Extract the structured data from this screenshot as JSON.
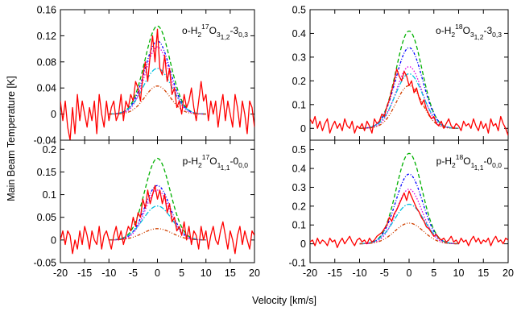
{
  "chart_data": [
    {
      "type": "line",
      "label_parts": [
        {
          "t": "o-H",
          "s": "n"
        },
        {
          "t": "2",
          "s": "sub"
        },
        {
          "t": "17",
          "s": "sup"
        },
        {
          "t": "O",
          "s": "n"
        },
        {
          "t": "3",
          "s": "sub"
        },
        {
          "t": "1,2",
          "s": "sub2"
        },
        {
          "t": "-3",
          "s": "n"
        },
        {
          "t": "0,3",
          "s": "sub"
        }
      ],
      "xlim": [
        -20,
        20
      ],
      "ylim": [
        -0.04,
        0.16
      ],
      "yticks": [
        -0.04,
        0,
        0.04,
        0.08,
        0.12,
        0.16
      ],
      "ytick_labels": [
        "-0.04",
        "0",
        "0.04",
        "0.08",
        "0.12",
        "0.16"
      ],
      "model_range": [
        -10,
        10
      ],
      "models": [
        {
          "color": "#00b000",
          "dash": "5,3",
          "peak": 0.135,
          "sigma": 2.6
        },
        {
          "color": "#0000ff",
          "dash": "3,2,1,2",
          "peak": 0.112,
          "sigma": 2.6
        },
        {
          "color": "#e000e0",
          "dash": "1.5,2",
          "peak": 0.103,
          "sigma": 2.5
        },
        {
          "color": "#00c0e0",
          "dash": "6,2,1.5,2",
          "peak": 0.07,
          "sigma": 2.9
        },
        {
          "color": "#d04000",
          "dash": "4,2,1,2,1,2",
          "peak": 0.043,
          "sigma": 2.6
        }
      ],
      "obs_x": [
        -20,
        -19.5,
        -19,
        -18.5,
        -18,
        -17.5,
        -17,
        -16.5,
        -16,
        -15.5,
        -15,
        -14.5,
        -14,
        -13.5,
        -13,
        -12.5,
        -12,
        -11.5,
        -11,
        -10.5,
        -10,
        -9.5,
        -9,
        -8.5,
        -8,
        -7.5,
        -7,
        -6.5,
        -6,
        -5.5,
        -5,
        -4.5,
        -4,
        -3.5,
        -3,
        -2.5,
        -2,
        -1.5,
        -1,
        -0.5,
        0,
        0.5,
        1,
        1.5,
        2,
        2.5,
        3,
        3.5,
        4,
        4.5,
        5,
        5.5,
        6,
        6.5,
        7,
        7.5,
        8,
        8.5,
        9,
        9.5,
        10,
        10.5,
        11,
        11.5,
        12,
        12.5,
        13,
        13.5,
        14,
        14.5,
        15,
        15.5,
        16,
        16.5,
        17,
        17.5,
        18,
        18.5,
        19,
        19.5,
        20
      ],
      "obs_y": [
        0.02,
        -0.01,
        0.02,
        -0.02,
        -0.04,
        0.01,
        -0.03,
        0.03,
        -0.01,
        0.02,
        0.0,
        -0.02,
        0.01,
        -0.01,
        0.02,
        -0.03,
        0.03,
        0.0,
        -0.02,
        0.02,
        -0.01,
        0.01,
        0.02,
        -0.01,
        0.0,
        0.03,
        -0.01,
        0.02,
        0.01,
        0.03,
        0.02,
        0.05,
        0.04,
        0.02,
        0.06,
        0.08,
        0.05,
        0.09,
        0.12,
        0.08,
        0.13,
        0.07,
        0.06,
        0.09,
        0.05,
        0.07,
        0.03,
        0.04,
        0.01,
        0.02,
        0.0,
        0.03,
        0.01,
        0.02,
        0.04,
        0.01,
        -0.01,
        0.02,
        0.05,
        0.02,
        0.03,
        -0.01,
        0.02,
        0.0,
        0.02,
        -0.02,
        0.01,
        0.03,
        -0.01,
        0.02,
        0.0,
        -0.02,
        0.03,
        0.01,
        -0.02,
        0.02,
        0.0,
        -0.03,
        0.02,
        0.01,
        -0.02
      ]
    },
    {
      "type": "line",
      "label_parts": [
        {
          "t": "o-H",
          "s": "n"
        },
        {
          "t": "2",
          "s": "sub"
        },
        {
          "t": "18",
          "s": "sup"
        },
        {
          "t": "O",
          "s": "n"
        },
        {
          "t": "3",
          "s": "sub"
        },
        {
          "t": "1,2",
          "s": "sub2"
        },
        {
          "t": "-3",
          "s": "n"
        },
        {
          "t": "0,3",
          "s": "sub"
        }
      ],
      "xlim": [
        -20,
        20
      ],
      "ylim": [
        -0.05,
        0.5
      ],
      "yticks": [
        0,
        0.1,
        0.2,
        0.3,
        0.4,
        0.5
      ],
      "ytick_labels": [
        "0",
        "0.1",
        "0.2",
        "0.3",
        "0.4",
        "0.5"
      ],
      "model_range": [
        -10,
        10
      ],
      "models": [
        {
          "color": "#00b000",
          "dash": "5,3",
          "peak": 0.41,
          "sigma": 2.6
        },
        {
          "color": "#0000ff",
          "dash": "3,2,1,2",
          "peak": 0.34,
          "sigma": 2.7
        },
        {
          "color": "#e000e0",
          "dash": "1.5,2",
          "peak": 0.26,
          "sigma": 2.6
        },
        {
          "color": "#00c0e0",
          "dash": "6,2,1.5,2",
          "peak": 0.23,
          "sigma": 2.8
        },
        {
          "color": "#d04000",
          "dash": "4,2,1,2,1,2",
          "peak": 0.18,
          "sigma": 2.6
        }
      ],
      "obs_x": [
        -20,
        -19.5,
        -19,
        -18.5,
        -18,
        -17.5,
        -17,
        -16.5,
        -16,
        -15.5,
        -15,
        -14.5,
        -14,
        -13.5,
        -13,
        -12.5,
        -12,
        -11.5,
        -11,
        -10.5,
        -10,
        -9.5,
        -9,
        -8.5,
        -8,
        -7.5,
        -7,
        -6.5,
        -6,
        -5.5,
        -5,
        -4.5,
        -4,
        -3.5,
        -3,
        -2.5,
        -2,
        -1.5,
        -1,
        -0.5,
        0,
        0.5,
        1,
        1.5,
        2,
        2.5,
        3,
        3.5,
        4,
        4.5,
        5,
        5.5,
        6,
        6.5,
        7,
        7.5,
        8,
        8.5,
        9,
        9.5,
        10,
        10.5,
        11,
        11.5,
        12,
        12.5,
        13,
        13.5,
        14,
        14.5,
        15,
        15.5,
        16,
        16.5,
        17,
        17.5,
        18,
        18.5,
        19,
        19.5,
        20
      ],
      "obs_y": [
        0.04,
        0.02,
        0.05,
        0.0,
        0.03,
        -0.01,
        0.02,
        0.04,
        -0.02,
        0.01,
        0.03,
        0.0,
        0.02,
        -0.01,
        0.04,
        0.01,
        0.0,
        0.03,
        -0.02,
        0.01,
        0.0,
        0.02,
        -0.01,
        0.03,
        0.01,
        -0.02,
        0.04,
        0.02,
        0.03,
        0.06,
        0.05,
        0.09,
        0.12,
        0.16,
        0.2,
        0.25,
        0.22,
        0.2,
        0.24,
        0.22,
        0.18,
        0.2,
        0.15,
        0.17,
        0.13,
        0.1,
        0.12,
        0.08,
        0.06,
        0.04,
        0.05,
        0.02,
        0.01,
        0.03,
        0.0,
        0.02,
        0.04,
        0.01,
        0.0,
        0.02,
        0.01,
        -0.01,
        0.03,
        0.01,
        0.02,
        0.0,
        0.04,
        0.01,
        -0.01,
        0.03,
        0.0,
        0.02,
        -0.02,
        0.04,
        0.01,
        0.02,
        -0.01,
        0.05,
        0.02,
        0.0,
        -0.03
      ]
    },
    {
      "type": "line",
      "label_parts": [
        {
          "t": "p-H",
          "s": "n"
        },
        {
          "t": "2",
          "s": "sub"
        },
        {
          "t": "17",
          "s": "sup"
        },
        {
          "t": "O",
          "s": "n"
        },
        {
          "t": "1",
          "s": "sub"
        },
        {
          "t": "1,1",
          "s": "sub2"
        },
        {
          "t": "-0",
          "s": "n"
        },
        {
          "t": "0,0",
          "s": "sub"
        }
      ],
      "xlim": [
        -20,
        20
      ],
      "ylim": [
        -0.05,
        0.22
      ],
      "yticks": [
        -0.05,
        0,
        0.05,
        0.1,
        0.15,
        0.2
      ],
      "ytick_labels": [
        "-0.05",
        "0",
        "0.05",
        "0.1",
        "0.15",
        "0.2"
      ],
      "model_range": [
        -10,
        10
      ],
      "models": [
        {
          "color": "#00b000",
          "dash": "5,3",
          "peak": 0.18,
          "sigma": 2.6
        },
        {
          "color": "#0000ff",
          "dash": "3,2,1,2",
          "peak": 0.12,
          "sigma": 2.6
        },
        {
          "color": "#e000e0",
          "dash": "1.5,2",
          "peak": 0.11,
          "sigma": 2.5
        },
        {
          "color": "#00c0e0",
          "dash": "6,2,1.5,2",
          "peak": 0.075,
          "sigma": 3.0
        },
        {
          "color": "#d04000",
          "dash": "4,2,1,2,1,2",
          "peak": 0.025,
          "sigma": 3.0
        }
      ],
      "obs_x": [
        -20,
        -19.5,
        -19,
        -18.5,
        -18,
        -17.5,
        -17,
        -16.5,
        -16,
        -15.5,
        -15,
        -14.5,
        -14,
        -13.5,
        -13,
        -12.5,
        -12,
        -11.5,
        -11,
        -10.5,
        -10,
        -9.5,
        -9,
        -8.5,
        -8,
        -7.5,
        -7,
        -6.5,
        -6,
        -5.5,
        -5,
        -4.5,
        -4,
        -3.5,
        -3,
        -2.5,
        -2,
        -1.5,
        -1,
        -0.5,
        0,
        0.5,
        1,
        1.5,
        2,
        2.5,
        3,
        3.5,
        4,
        4.5,
        5,
        5.5,
        6,
        6.5,
        7,
        7.5,
        8,
        8.5,
        9,
        9.5,
        10,
        10.5,
        11,
        11.5,
        12,
        12.5,
        13,
        13.5,
        14,
        14.5,
        15,
        15.5,
        16,
        16.5,
        17,
        17.5,
        18,
        18.5,
        19,
        19.5,
        20
      ],
      "obs_y": [
        0.0,
        0.02,
        -0.01,
        0.02,
        0.01,
        -0.03,
        0.0,
        -0.02,
        0.02,
        -0.01,
        0.03,
        0.01,
        -0.02,
        0.02,
        0.0,
        -0.01,
        0.03,
        -0.02,
        0.01,
        0.02,
        0.0,
        -0.02,
        0.01,
        0.03,
        0.0,
        0.02,
        -0.01,
        0.01,
        0.03,
        0.02,
        0.05,
        0.03,
        0.06,
        0.05,
        0.09,
        0.07,
        0.11,
        0.08,
        0.1,
        0.12,
        0.09,
        0.11,
        0.08,
        0.1,
        0.06,
        0.08,
        0.04,
        0.05,
        0.02,
        0.03,
        0.01,
        0.04,
        0.0,
        0.03,
        -0.01,
        0.02,
        0.01,
        -0.02,
        0.03,
        0.0,
        0.02,
        -0.02,
        0.01,
        0.03,
        0.0,
        -0.01,
        0.02,
        0.04,
        0.01,
        -0.02,
        0.02,
        0.0,
        -0.03,
        0.01,
        0.03,
        -0.01,
        0.02,
        0.0,
        -0.02,
        0.02,
        0.01
      ]
    },
    {
      "type": "line",
      "label_parts": [
        {
          "t": "p-H",
          "s": "n"
        },
        {
          "t": "2",
          "s": "sub"
        },
        {
          "t": "18",
          "s": "sup"
        },
        {
          "t": "O",
          "s": "n"
        },
        {
          "t": "1",
          "s": "sub"
        },
        {
          "t": "1,1",
          "s": "sub2"
        },
        {
          "t": "-0",
          "s": "n"
        },
        {
          "t": "0,0",
          "s": "sub"
        }
      ],
      "xlim": [
        -20,
        20
      ],
      "ylim": [
        -0.1,
        0.55
      ],
      "yticks": [
        -0.1,
        0,
        0.1,
        0.2,
        0.3,
        0.4,
        0.5
      ],
      "ytick_labels": [
        "-0.1",
        "0",
        "0.1",
        "0.2",
        "0.3",
        "0.4",
        "0.5"
      ],
      "model_range": [
        -10,
        10
      ],
      "models": [
        {
          "color": "#00b000",
          "dash": "5,3",
          "peak": 0.48,
          "sigma": 2.6
        },
        {
          "color": "#0000ff",
          "dash": "3,2,1,2",
          "peak": 0.37,
          "sigma": 2.7
        },
        {
          "color": "#e000e0",
          "dash": "1.5,2",
          "peak": 0.29,
          "sigma": 2.6
        },
        {
          "color": "#00c0e0",
          "dash": "6,2,1.5,2",
          "peak": 0.21,
          "sigma": 3.0
        },
        {
          "color": "#d04000",
          "dash": "4,2,1,2,1,2",
          "peak": 0.11,
          "sigma": 2.9
        }
      ],
      "obs_x": [
        -20,
        -19.5,
        -19,
        -18.5,
        -18,
        -17.5,
        -17,
        -16.5,
        -16,
        -15.5,
        -15,
        -14.5,
        -14,
        -13.5,
        -13,
        -12.5,
        -12,
        -11.5,
        -11,
        -10.5,
        -10,
        -9.5,
        -9,
        -8.5,
        -8,
        -7.5,
        -7,
        -6.5,
        -6,
        -5.5,
        -5,
        -4.5,
        -4,
        -3.5,
        -3,
        -2.5,
        -2,
        -1.5,
        -1,
        -0.5,
        0,
        0.5,
        1,
        1.5,
        2,
        2.5,
        3,
        3.5,
        4,
        4.5,
        5,
        5.5,
        6,
        6.5,
        7,
        7.5,
        8,
        8.5,
        9,
        9.5,
        10,
        10.5,
        11,
        11.5,
        12,
        12.5,
        13,
        13.5,
        14,
        14.5,
        15,
        15.5,
        16,
        16.5,
        17,
        17.5,
        18,
        18.5,
        19,
        19.5,
        20
      ],
      "obs_y": [
        0.01,
        0.02,
        -0.01,
        0.03,
        0.0,
        0.02,
        0.01,
        -0.01,
        0.03,
        0.01,
        0.02,
        -0.02,
        0.01,
        0.03,
        0.0,
        0.02,
        0.04,
        0.01,
        -0.01,
        0.02,
        0.03,
        0.01,
        0.02,
        0.0,
        0.03,
        0.01,
        0.02,
        0.04,
        0.05,
        0.06,
        0.08,
        0.1,
        0.14,
        0.12,
        0.16,
        0.18,
        0.21,
        0.24,
        0.27,
        0.23,
        0.28,
        0.25,
        0.22,
        0.19,
        0.17,
        0.14,
        0.12,
        0.09,
        0.08,
        0.06,
        0.04,
        0.05,
        0.03,
        0.02,
        0.03,
        0.01,
        0.02,
        0.04,
        0.01,
        0.02,
        0.0,
        0.03,
        0.01,
        0.02,
        -0.01,
        0.02,
        0.04,
        0.01,
        0.03,
        0.0,
        0.02,
        0.01,
        0.03,
        -0.01,
        0.02,
        0.04,
        0.01,
        0.02,
        0.0,
        0.03,
        0.02
      ]
    }
  ],
  "axes": {
    "xticks": [
      -20,
      -15,
      -10,
      -5,
      0,
      5,
      10,
      15,
      20
    ],
    "xtick_labels": [
      "-20",
      "-15",
      "-10",
      "-5",
      "0",
      "5",
      "10",
      "15",
      "20"
    ],
    "xlabel": "Velocity [km/s]",
    "ylabel": "Main Beam Temperature [K]"
  },
  "colors": {
    "observed": "#ff0000",
    "axes": "#000000"
  }
}
